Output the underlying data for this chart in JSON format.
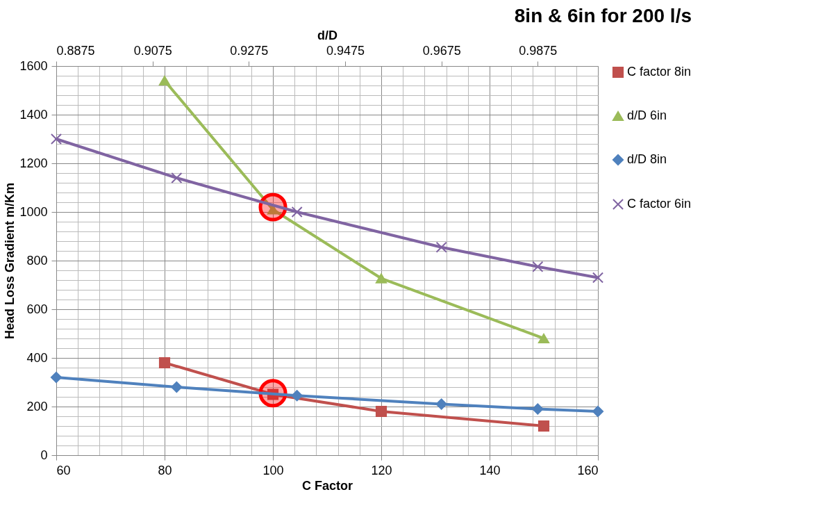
{
  "chart_data": {
    "type": "line",
    "title": "8in & 6in for 200 l/s",
    "xlabel": "C Factor",
    "x2label": "d/D",
    "ylabel": "Head Loss Gradient m/Km",
    "xlim": [
      60,
      160
    ],
    "ylim": [
      0,
      1600
    ],
    "x2lim": [
      0.8875,
      1.0
    ],
    "xticks": [
      60,
      {
        "value": 64,
        "label": null
      },
      {
        "value": 68,
        "label": null
      },
      {
        "value": 72,
        "label": null
      },
      {
        "value": 76,
        "label": null
      },
      80,
      {
        "value": 84,
        "label": null
      },
      {
        "value": 88,
        "label": null
      },
      {
        "value": 92,
        "label": null
      },
      {
        "value": 96,
        "label": null
      },
      100,
      {
        "value": 104,
        "label": null
      },
      {
        "value": 108,
        "label": null
      },
      {
        "value": 112,
        "label": null
      },
      {
        "value": 116,
        "label": null
      },
      120,
      {
        "value": 124,
        "label": null
      },
      {
        "value": 128,
        "label": null
      },
      {
        "value": 132,
        "label": null
      },
      {
        "value": 136,
        "label": null
      },
      140,
      {
        "value": 144,
        "label": null
      },
      {
        "value": 148,
        "label": null
      },
      {
        "value": 152,
        "label": null
      },
      {
        "value": 156,
        "label": null
      },
      160
    ],
    "yticks": [
      0,
      {
        "value": 40,
        "label": null
      },
      {
        "value": 80,
        "label": null
      },
      {
        "value": 120,
        "label": null
      },
      {
        "value": 160,
        "label": null
      },
      200,
      {
        "value": 240,
        "label": null
      },
      {
        "value": 280,
        "label": null
      },
      {
        "value": 320,
        "label": null
      },
      {
        "value": 360,
        "label": null
      },
      400,
      {
        "value": 440,
        "label": null
      },
      {
        "value": 480,
        "label": null
      },
      {
        "value": 520,
        "label": null
      },
      {
        "value": 560,
        "label": null
      },
      600,
      {
        "value": 640,
        "label": null
      },
      {
        "value": 680,
        "label": null
      },
      {
        "value": 720,
        "label": null
      },
      {
        "value": 760,
        "label": null
      },
      800,
      {
        "value": 840,
        "label": null
      },
      {
        "value": 880,
        "label": null
      },
      {
        "value": 920,
        "label": null
      },
      {
        "value": 960,
        "label": null
      },
      1000,
      {
        "value": 1040,
        "label": null
      },
      {
        "value": 1080,
        "label": null
      },
      {
        "value": 1120,
        "label": null
      },
      {
        "value": 1160,
        "label": null
      },
      1200,
      {
        "value": 1240,
        "label": null
      },
      {
        "value": 1280,
        "label": null
      },
      {
        "value": 1320,
        "label": null
      },
      {
        "value": 1360,
        "label": null
      },
      1400,
      {
        "value": 1440,
        "label": null
      },
      {
        "value": 1480,
        "label": null
      },
      {
        "value": 1520,
        "label": null
      },
      {
        "value": 1560,
        "label": null
      },
      1600
    ],
    "x2ticks": [
      0.8875,
      0.9075,
      0.9275,
      0.9475,
      0.9675,
      0.9875
    ],
    "grid": true,
    "legend": "right",
    "line_style": "solid",
    "series": [
      {
        "name": "C factor 8in",
        "color": "#c0504d",
        "marker": "square",
        "x": [
          80,
          100,
          120,
          150
        ],
        "values": [
          380,
          250,
          180,
          120
        ]
      },
      {
        "name": "d/D 6in",
        "color": "#9bbb59",
        "marker": "triangle",
        "x": [
          80,
          100,
          120,
          150
        ],
        "values": [
          1540,
          1010,
          727,
          480
        ]
      },
      {
        "name": "d/D 8in",
        "color": "#4f81bd",
        "marker": "diamond",
        "axis": "x2",
        "x": [
          0.8875,
          0.9125,
          0.9375,
          0.9675,
          0.9875,
          1.0
        ],
        "values": [
          320,
          280,
          245,
          210,
          190,
          180
        ]
      },
      {
        "name": "C factor 6in",
        "color": "#8064a2",
        "marker": "cross",
        "axis": "x2",
        "x": [
          0.8875,
          0.9125,
          0.9375,
          0.9675,
          0.9875,
          1.0
        ],
        "values": [
          1300,
          1140,
          1000,
          855,
          775,
          730
        ]
      },
      {
        "type": "scatter",
        "color": "#ff0000",
        "marker": "circle",
        "x": [
          100,
          100
        ],
        "values": [
          1020,
          255
        ]
      }
    ]
  }
}
